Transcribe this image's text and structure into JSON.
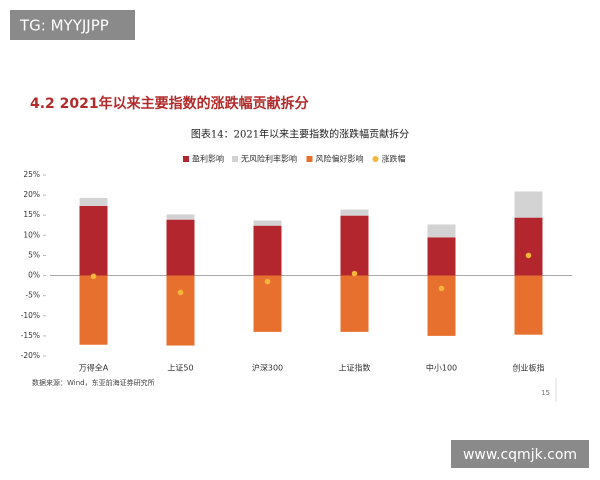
{
  "watermark_top": "TG: MYYJJPP",
  "heading": "4.2 2021年以来主要指数的涨跌幅贡献拆分",
  "chart_data": {
    "type": "bar",
    "stacked": true,
    "title": "图表14：2021年以来主要指数的涨跌幅贡献拆分",
    "categories": [
      "万得全A",
      "上证50",
      "沪深300",
      "上证指数",
      "中小100",
      "创业板指"
    ],
    "series": [
      {
        "name": "盈利影响",
        "color": "#b3262e",
        "values": [
          17.3,
          13.9,
          12.4,
          14.9,
          9.5,
          14.4
        ]
      },
      {
        "name": "无风险利率影响",
        "color": "#d3d3d3",
        "values": [
          2.0,
          1.3,
          1.3,
          1.5,
          3.2,
          6.5
        ]
      },
      {
        "name": "风险偏好影响",
        "color": "#e8702f",
        "values": [
          -17.2,
          -17.4,
          -14.0,
          -14.0,
          -15.0,
          -14.7
        ]
      },
      {
        "name": "涨跌幅",
        "color": "#f4b63a",
        "mark": "dot",
        "values": [
          -0.2,
          -4.2,
          -1.5,
          0.5,
          -3.2,
          5.0
        ]
      }
    ],
    "ylim": [
      -20,
      25
    ],
    "yticks": [
      {
        "value": -20,
        "label": "-20%"
      },
      {
        "value": -15,
        "label": "-15%"
      },
      {
        "value": -10,
        "label": "-10%"
      },
      {
        "value": -5,
        "label": "-5%"
      },
      {
        "value": 0,
        "label": "0%"
      },
      {
        "value": 5,
        "label": "5%"
      },
      {
        "value": 10,
        "label": "10%"
      },
      {
        "value": 15,
        "label": "15%"
      },
      {
        "value": 20,
        "label": "20%"
      },
      {
        "value": 25,
        "label": "25%"
      }
    ],
    "legend": "top",
    "source": "数据来源：Wind，东亚前海证券研究所"
  },
  "page_number": "15",
  "watermark_bottom": "www.cqmjk.com"
}
